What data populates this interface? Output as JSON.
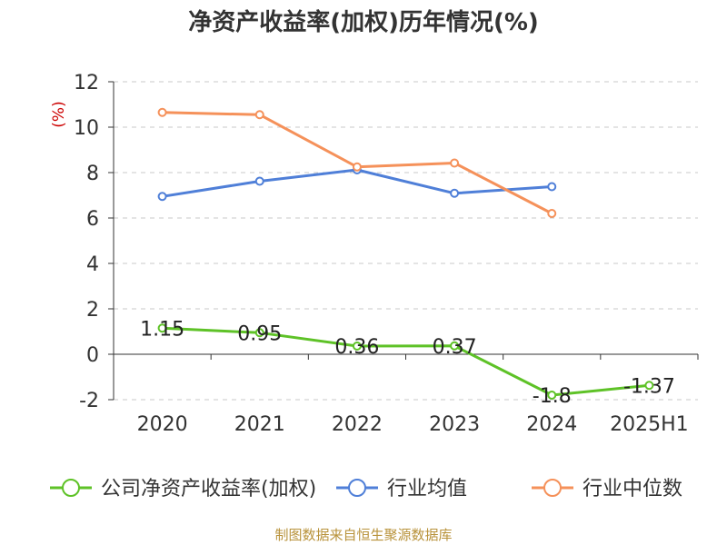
{
  "chart_data": {
    "type": "line",
    "title": "净资产收益率(加权)历年情况(%)",
    "unit_label": "(%)",
    "categories": [
      "2020",
      "2021",
      "2022",
      "2023",
      "2024",
      "2025H1"
    ],
    "ylim": [
      -2,
      12
    ],
    "yticks": [
      -2,
      0,
      2,
      4,
      6,
      8,
      10,
      12
    ],
    "grid": true,
    "legend_position": "bottom",
    "series": [
      {
        "name": "公司净资产收益率(加权)",
        "color": "#5ec227",
        "values": [
          1.15,
          0.95,
          0.36,
          0.37,
          -1.8,
          -1.37
        ],
        "labels": [
          "1.15",
          "0.95",
          "0.36",
          "0.37",
          "-1.8",
          "-1.37"
        ]
      },
      {
        "name": "行业均值",
        "color": "#4f7fd8",
        "values": [
          6.95,
          7.62,
          8.12,
          7.09,
          7.38,
          null
        ]
      },
      {
        "name": "行业中位数",
        "color": "#f5915a",
        "values": [
          10.65,
          10.55,
          8.25,
          8.42,
          6.2,
          null
        ]
      }
    ]
  },
  "source_note": "制图数据来自恒生聚源数据库"
}
